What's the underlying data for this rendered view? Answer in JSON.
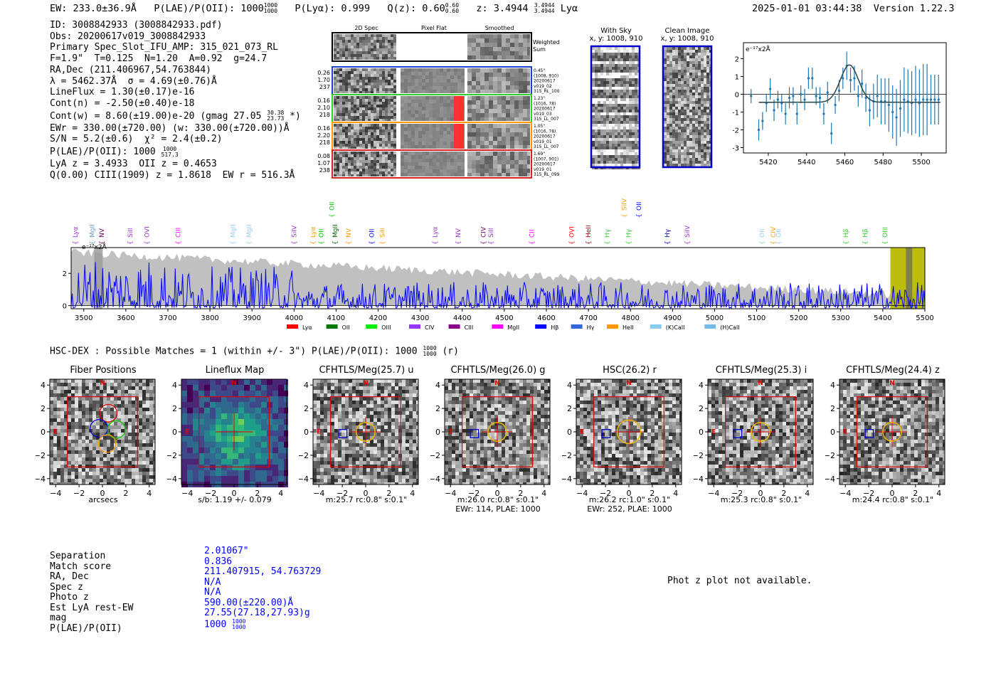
{
  "header": {
    "ew": "EW: 233.0±36.9Å",
    "plae_label": "P(LAE)/P(OII): 1000",
    "plae_hi": "1000",
    "plae_lo": "1000",
    "plya": "P(Lyα): 0.999",
    "qz_label": "Q(z): 0.60",
    "qz_hi": "0.60",
    "qz_lo": "0.60",
    "z_label": "z: 3.4944",
    "z_hi": "3.4944",
    "z_lo": "3.4944",
    "line": "Lyα",
    "timestamp": "2025-01-01 03:44:38",
    "version": "Version 1.22.3"
  },
  "info": {
    "l1": "ID: 3008842933 (3008842933.pdf)",
    "l2": "Obs: 20200617v019_3008842933",
    "l3": "Primary Spec_Slot_IFU_AMP: 315_021_073_RL",
    "l4": "F=1.9\"  T=0.125  N=1.20  A=0.92  g=24.7",
    "l5": "RA,Dec (211.406967,54.763844)",
    "l6": "λ = 5462.37Å  σ = 4.69(±0.76)Å",
    "l7": "LineFlux = 1.30(±0.17)e-16",
    "l8": "Cont(n) = -2.50(±0.40)e-18",
    "l9": "Cont(w) = 8.60(±19.00)e-20 (gmag 27.05",
    "l9_hi": "30.38",
    "l9_lo": "23.73",
    "l9_end": " *)",
    "l10": "EWr = 330.00(±720.00) (w: 330.00(±720.00))Å",
    "l11": "S/N = 5.2(±0.6)  χ² = 2.4(±0.2)",
    "l12": "P(LAE)/P(OII): 1000",
    "l12_hi": "1000",
    "l12_lo": "517.3",
    "l13": "LyA z = 3.4933  OII z = 0.4653",
    "l14": "Q(0.00) CIII(1909) z = 1.8618  EW r = 516.3Å"
  },
  "cutouts": {
    "col_2d": "2D Spec",
    "col_flat": "Pixel Flat",
    "col_smooth": "Smoothed",
    "weighted": "Weighted Sum",
    "rows": [
      {
        "a": "0.26",
        "b": "1.70",
        "c": "237",
        "r1": "0.45\"",
        "r2": "(1008, 910)",
        "r3": "20200617",
        "r4": "v019_02",
        "r5": "315_RL_100",
        "color": "#1f3fd0"
      },
      {
        "a": "0.16",
        "b": "2.10",
        "c": "218",
        "r1": "1.23\"",
        "r2": "(1016, 78)",
        "r3": "20200617",
        "r4": "v019_03",
        "r5": "315_LL_007",
        "color": "#33cc33"
      },
      {
        "a": "0.16",
        "b": "2.20",
        "c": "218",
        "r1": "1.05\"",
        "r2": "(1016, 78)",
        "r3": "20200617",
        "r4": "v019_01",
        "r5": "315_LL_007",
        "color": "#ff9900"
      },
      {
        "a": "0.08",
        "b": "1.07",
        "c": "238",
        "r1": "1.69\"",
        "r2": "(1007, 901)",
        "r3": "20200617",
        "r4": "v019_01",
        "r5": "315_RL_099",
        "color": "#e02020"
      }
    ],
    "with_sky": "With Sky",
    "with_sky_xy": "x, y: 1008, 910",
    "clean": "Clean Image",
    "clean_xy": "x, y: 1008, 910"
  },
  "zoom_chart": {
    "type": "scatter",
    "unit_label": "e⁻¹⁷x2Å",
    "xticks": [
      "5420",
      "5440",
      "5460",
      "5480",
      "5500"
    ],
    "yticks": [
      "2",
      "1",
      "0",
      "-1",
      "-2",
      "-3"
    ],
    "xlim": [
      5407,
      5513
    ],
    "ylim": [
      -3.3,
      2.9
    ],
    "x": [
      5411,
      5415,
      5417,
      5419,
      5421,
      5423,
      5425,
      5427,
      5429,
      5431,
      5433,
      5435,
      5437,
      5439,
      5441,
      5443,
      5445,
      5447,
      5449,
      5451,
      5453,
      5455,
      5457,
      5459,
      5461,
      5463,
      5465,
      5467,
      5469,
      5471,
      5473,
      5475,
      5477,
      5479,
      5481,
      5483,
      5485,
      5487,
      5489,
      5491,
      5493,
      5495,
      5497,
      5499,
      5501,
      5503,
      5505,
      5507,
      5509
    ],
    "y": [
      -0.1,
      -2.0,
      -1.5,
      -0.5,
      0.3,
      -0.9,
      -0.3,
      -0.5,
      -1.1,
      -0.2,
      -0.1,
      -1.1,
      0.0,
      -0.3,
      0.9,
      0.9,
      -0.1,
      -0.2,
      -1.1,
      0.1,
      -2.2,
      -0.6,
      0.2,
      0.9,
      1.6,
      0.8,
      0.9,
      -0.1,
      0.6,
      -0.2,
      -0.9,
      -0.4,
      -0.1,
      -0.4,
      -0.4,
      -0.6,
      -1.0,
      -1.3,
      -0.8,
      -0.3,
      -0.4,
      -0.5,
      -0.3,
      -0.5,
      -0.3,
      -0.3,
      -0.3,
      -0.3,
      -0.3
    ],
    "err": [
      0.4,
      0.6,
      0.5,
      0.5,
      0.6,
      0.6,
      0.5,
      0.5,
      0.6,
      0.6,
      0.5,
      0.6,
      0.5,
      0.6,
      0.6,
      0.6,
      0.5,
      0.6,
      0.6,
      0.6,
      0.6,
      0.5,
      0.6,
      0.6,
      0.8,
      0.7,
      0.7,
      0.6,
      0.8,
      0.8,
      0.9,
      1.0,
      1.2,
      1.3,
      1.3,
      1.5,
      1.5,
      1.6,
      1.6,
      1.8,
      1.8,
      1.8,
      1.9,
      1.9,
      2.0,
      2.0,
      1.4,
      1.4,
      1.4
    ],
    "fit_center": 5462.4,
    "fit_sigma": 4.7,
    "fit_amp": 2.1,
    "fit_base": -0.45
  },
  "full_spectrum": {
    "type": "line",
    "unit_label": "e⁻¹⁷x2Å",
    "xticks": [
      "3500",
      "3600",
      "3700",
      "3800",
      "3900",
      "4000",
      "4100",
      "4200",
      "4300",
      "4400",
      "4500",
      "4600",
      "4700",
      "4800",
      "4900",
      "5000",
      "5100",
      "5200",
      "5300",
      "5400",
      "5500"
    ],
    "yticks": [
      "2",
      "0"
    ],
    "xlim": [
      3470,
      5500
    ],
    "ylim": [
      -0.2,
      3.6
    ],
    "lines_upper": [
      {
        "name": "OII",
        "w": 4090,
        "color": "#00cc00"
      },
      {
        "name": "SiIV",
        "w": 4785,
        "color": "#ff9900"
      },
      {
        "name": "OII",
        "w": 4820,
        "color": "#0000ff"
      }
    ],
    "lines_lower": [
      {
        "name": "Lyα",
        "w": 3480,
        "color": "#9933cc"
      },
      {
        "name": "MgII",
        "w": 3520,
        "color": "#6699cc"
      },
      {
        "name": "NV",
        "w": 3543,
        "color": "#660066"
      },
      {
        "name": "SiII",
        "w": 3610,
        "color": "#9933cc"
      },
      {
        "name": "OVI",
        "w": 3650,
        "color": "#9933cc"
      },
      {
        "name": "CIII",
        "w": 3725,
        "color": "#ff00ff"
      },
      {
        "name": "MgII",
        "w": 3855,
        "color": "#99ccee"
      },
      {
        "name": "MgII",
        "w": 3893,
        "color": "#99ccee"
      },
      {
        "name": "SiIV",
        "w": 4000,
        "color": "#9933cc"
      },
      {
        "name": "Lyα",
        "w": 4045,
        "color": "#ff9900"
      },
      {
        "name": "OII",
        "w": 4065,
        "color": "#00cc00"
      },
      {
        "name": "MgII",
        "w": 4098,
        "color": "#006600"
      },
      {
        "name": "NV",
        "w": 4130,
        "color": "#ff9900"
      },
      {
        "name": "OII",
        "w": 4185,
        "color": "#0000ff"
      },
      {
        "name": "SiII",
        "w": 4210,
        "color": "#ff9900"
      },
      {
        "name": "Lyα",
        "w": 4335,
        "color": "#9933cc"
      },
      {
        "name": "NV",
        "w": 4390,
        "color": "#9933cc"
      },
      {
        "name": "CIV",
        "w": 4450,
        "color": "#660066"
      },
      {
        "name": "SiII",
        "w": 4468,
        "color": "#9933cc"
      },
      {
        "name": "CII",
        "w": 4565,
        "color": "#ff00ff"
      },
      {
        "name": "OVI",
        "w": 4660,
        "color": "#ff0000"
      },
      {
        "name": "HeII",
        "w": 4700,
        "color": "#990000"
      },
      {
        "name": "Hγ",
        "w": 4745,
        "color": "#33cc33"
      },
      {
        "name": "Hγ",
        "w": 4795,
        "color": "#33cc33"
      },
      {
        "name": "Hγ",
        "w": 4888,
        "color": "#0000cc"
      },
      {
        "name": "SiIV",
        "w": 4935,
        "color": "#9933cc"
      },
      {
        "name": "OII",
        "w": 5113,
        "color": "#99ccee"
      },
      {
        "name": "CIV",
        "w": 5140,
        "color": "#ff9900"
      },
      {
        "name": "OII",
        "w": 5152,
        "color": "#99ccee"
      },
      {
        "name": "Hβ",
        "w": 5312,
        "color": "#33cc33"
      },
      {
        "name": "Hβ",
        "w": 5358,
        "color": "#33cc33"
      },
      {
        "name": "OIII",
        "w": 5405,
        "color": "#33cc33"
      }
    ],
    "legend": [
      {
        "label": "Lyα",
        "color": "#ff0000"
      },
      {
        "label": "OII",
        "color": "#007700"
      },
      {
        "label": "OIII",
        "color": "#00ee00"
      },
      {
        "label": "CIV",
        "color": "#9933ff"
      },
      {
        "label": "CIII",
        "color": "#880088"
      },
      {
        "label": "MgII",
        "color": "#ff00ff"
      },
      {
        "label": "Hβ",
        "color": "#0000ff"
      },
      {
        "label": "Hγ",
        "color": "#3366dd"
      },
      {
        "label": "HeII",
        "color": "#ff9900"
      },
      {
        "label": "(K)CaII",
        "color": "#88ccee"
      },
      {
        "label": "(H)CaII",
        "color": "#77bbee"
      }
    ]
  },
  "hsc": {
    "title": "HSC-DEX : Possible Matches = 1 (within +/- 3\")  P(LAE)/P(OII): 1000",
    "hi": "1000",
    "lo": "1000",
    "end": " (r)"
  },
  "panels": [
    {
      "title": "Fiber Positions",
      "cap1": "arcsecs",
      "cap2": ""
    },
    {
      "title": "Lineflux Map",
      "cap1": "s/b: 1.19 +/- 0.079",
      "cap2": ""
    },
    {
      "title": "CFHTLS/Meg(25.7) u",
      "cap1": "m:25.7 rc:0.8\"  s:0.1\"",
      "cap2": ""
    },
    {
      "title": "CFHTLS/Meg(26.0) g",
      "cap1": "m:26.0 rc:0.8\"  s:0.1\"",
      "cap2": "EWr: 114, PLAE: 1000"
    },
    {
      "title": "HSC(26.2) r",
      "cap1": "m:26.2 rc:1.0\"  s:0.1\"",
      "cap2": "EWr: 252, PLAE: 1000"
    },
    {
      "title": "CFHTLS/Meg(25.3) i",
      "cap1": "m:25.3 rc:0.8\"  s:0.1\"",
      "cap2": ""
    },
    {
      "title": "CFHTLS/Meg(24.4) z",
      "cap1": "m:24.4 rc:0.8\"  s:0.1\"",
      "cap2": ""
    }
  ],
  "panel_axis": {
    "xticks": [
      "−4",
      "−2",
      "0",
      "2",
      "4"
    ],
    "yticks": [
      "4",
      "2",
      "0",
      "−2",
      "−4"
    ],
    "north": "N",
    "east": "E"
  },
  "match": {
    "labels": [
      "Separation",
      "Match score",
      "RA, Dec",
      "Spec z",
      "Photo z",
      "Est LyA rest-EW",
      "mag",
      "P(LAE)/P(OII)"
    ],
    "values": [
      "2.01067\"",
      "0.836",
      "211.407915, 54.763729",
      "N/A",
      "N/A",
      "590.00(±220.00)Å",
      "27.55(27.18,27.93)g",
      "1000"
    ],
    "plae_hi": "1000",
    "plae_lo": "1000",
    "photz_note": "Phot z plot not available."
  },
  "colors": {
    "spectrum": "#0000ff",
    "noise": "#c0c0c0",
    "zoom_points": "#1f77b4",
    "fit": "#2f4f4f",
    "highlight": "#b8b800",
    "box": "#e00000"
  }
}
